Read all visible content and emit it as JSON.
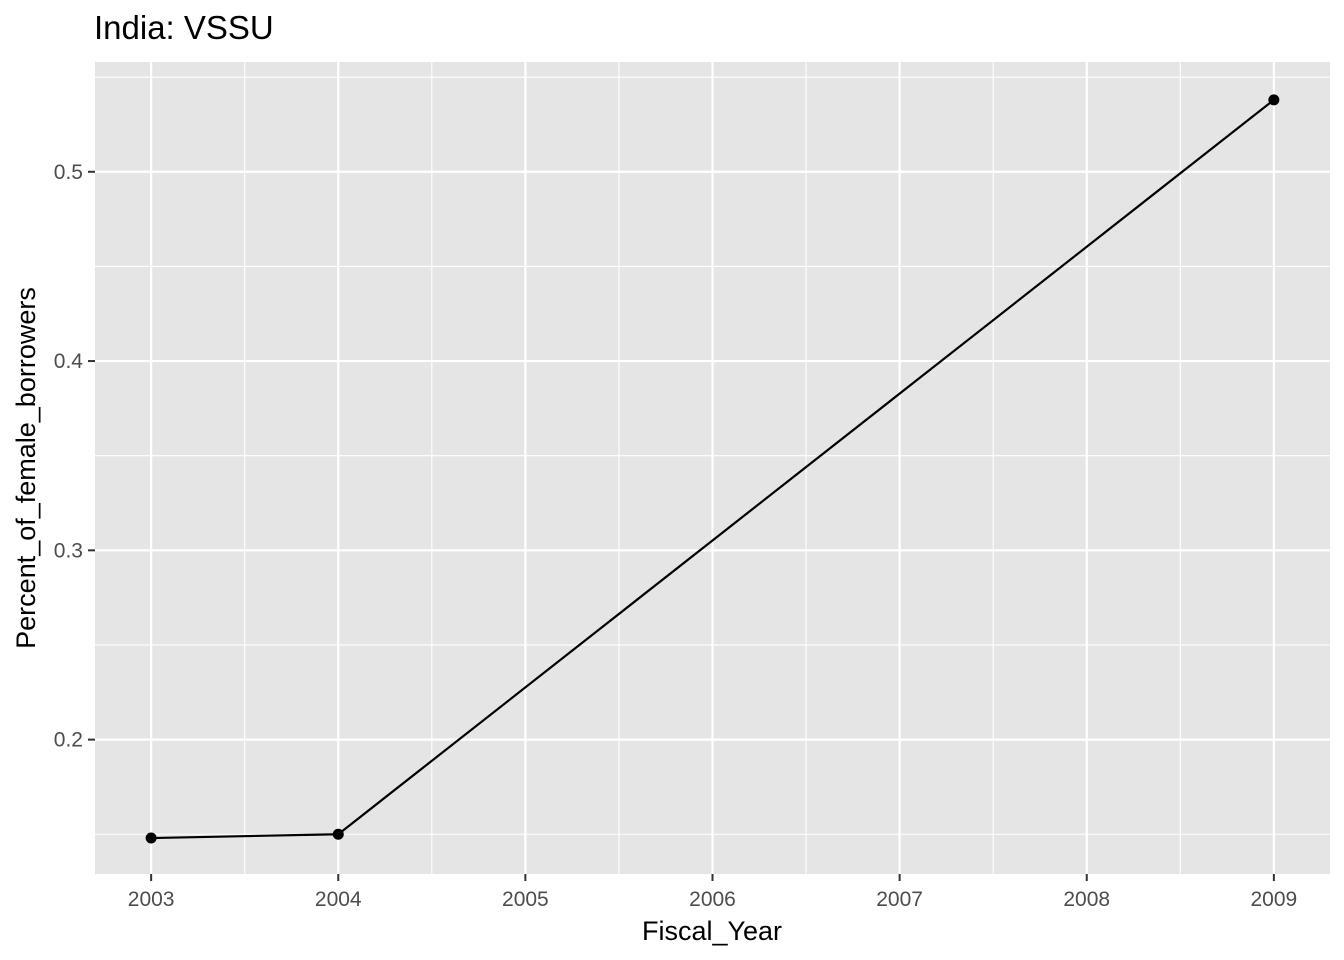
{
  "chart_data": {
    "type": "line",
    "title": "India:  VSSU",
    "xlabel": "Fiscal_Year",
    "ylabel": "Percent_of_female_borrowers",
    "x": [
      2003,
      2004,
      2009
    ],
    "series": [
      {
        "values": [
          0.148,
          0.15,
          0.538
        ]
      }
    ],
    "xlim": [
      2002.7,
      2009.3
    ],
    "ylim": [
      0.129,
      0.558
    ],
    "x_ticks": [
      "2003",
      "2004",
      "2005",
      "2006",
      "2007",
      "2008",
      "2009"
    ],
    "y_ticks": [
      "0.2",
      "0.3",
      "0.4",
      "0.5"
    ],
    "grid": true,
    "colors": {
      "panel": "#e5e5e5",
      "grid": "#ffffff",
      "line": "#000000",
      "tick_text": "#4d4d4d"
    }
  }
}
